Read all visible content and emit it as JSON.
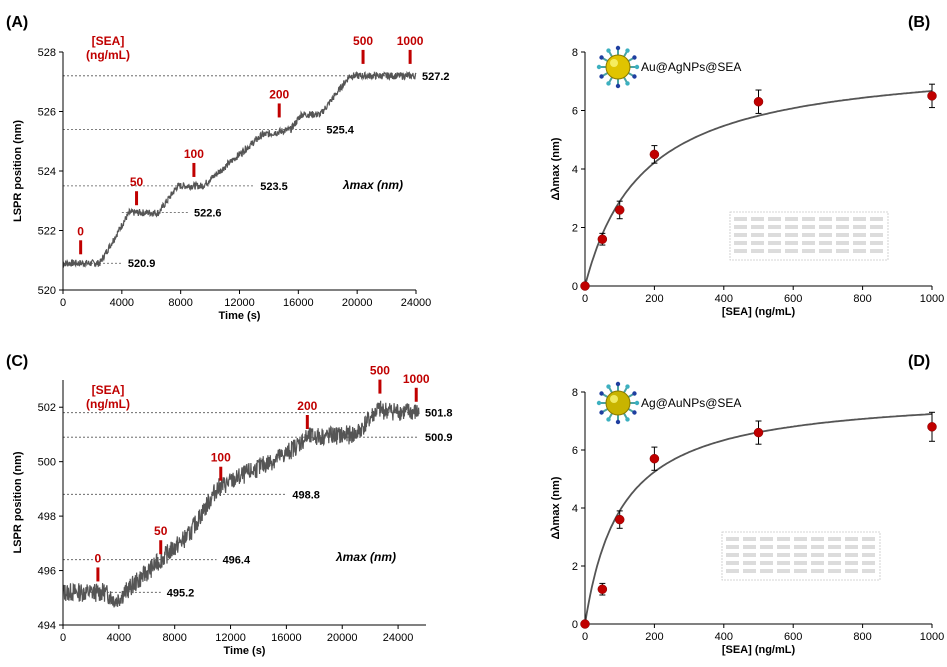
{
  "panel_labels": {
    "A": "(A)",
    "B": "(B)",
    "C": "(C)",
    "D": "(D)"
  },
  "colors": {
    "trace": "#555555",
    "marker": "#c00000",
    "point": "#c00000",
    "fit": "#555555"
  },
  "chart_data": [
    {
      "id": "A",
      "type": "line",
      "xlabel": "Time (s)",
      "ylabel": "LSPR position (nm)",
      "xlim": [
        0,
        24000
      ],
      "ylim": [
        520,
        528
      ],
      "xticks": [
        0,
        4000,
        8000,
        12000,
        16000,
        20000,
        24000
      ],
      "yticks": [
        520,
        522,
        524,
        526,
        528
      ],
      "sea_label_line1": "[SEA]",
      "sea_label_line2": "(ng/mL)",
      "lambda_label": "λmax (nm)",
      "trace_segments": [
        {
          "x0": 0,
          "x1": 2500,
          "y0": 520.9,
          "y1": 520.9
        },
        {
          "x0": 2500,
          "x1": 4500,
          "y0": 520.9,
          "y1": 522.6
        },
        {
          "x0": 4500,
          "x1": 6500,
          "y0": 522.6,
          "y1": 522.6
        },
        {
          "x0": 6500,
          "x1": 7800,
          "y0": 522.6,
          "y1": 523.5
        },
        {
          "x0": 7800,
          "x1": 9500,
          "y0": 523.5,
          "y1": 523.5
        },
        {
          "x0": 9500,
          "x1": 13500,
          "y0": 523.5,
          "y1": 525.2
        },
        {
          "x0": 13500,
          "x1": 15500,
          "y0": 525.2,
          "y1": 525.4
        },
        {
          "x0": 15500,
          "x1": 16200,
          "y0": 525.4,
          "y1": 525.9
        },
        {
          "x0": 16200,
          "x1": 17500,
          "y0": 525.9,
          "y1": 525.9
        },
        {
          "x0": 17500,
          "x1": 19500,
          "y0": 525.9,
          "y1": 527.2
        },
        {
          "x0": 19500,
          "x1": 24000,
          "y0": 527.2,
          "y1": 527.2
        }
      ],
      "noise": 0.12,
      "injections": [
        {
          "label": "0",
          "x": 1200,
          "y": 521.2
        },
        {
          "label": "50",
          "x": 5000,
          "y": 522.85
        },
        {
          "label": "100",
          "x": 8900,
          "y": 523.8
        },
        {
          "label": "200",
          "x": 14700,
          "y": 525.8
        },
        {
          "label": "500",
          "x": 20400,
          "y": 527.6
        },
        {
          "label": "1000",
          "x": 23600,
          "y": 527.6
        }
      ],
      "levels": [
        {
          "label": "520.9",
          "value": 520.9,
          "x_start": 0,
          "x_end": 4000
        },
        {
          "label": "522.6",
          "value": 522.6,
          "x_start": 4000,
          "x_end": 8500
        },
        {
          "label": "523.5",
          "value": 523.5,
          "x_start": 0,
          "x_end": 13000
        },
        {
          "label": "525.4",
          "value": 525.4,
          "x_start": 0,
          "x_end": 17500
        },
        {
          "label": "527.2",
          "value": 527.2,
          "x_start": 0,
          "x_end": 24000
        }
      ]
    },
    {
      "id": "B",
      "type": "scatter",
      "xlabel": "[SEA] (ng/mL)",
      "ylabel": "Δλmax (nm)",
      "xlim": [
        0,
        1000
      ],
      "ylim": [
        0,
        8
      ],
      "xticks": [
        0,
        200,
        400,
        600,
        800,
        1000
      ],
      "yticks": [
        0,
        2,
        4,
        6,
        8
      ],
      "np_label": "Au@AgNPs@SEA",
      "points": [
        {
          "x": 0,
          "y": 0,
          "err": 0
        },
        {
          "x": 50,
          "y": 1.6,
          "err": 0.2
        },
        {
          "x": 100,
          "y": 2.6,
          "err": 0.3
        },
        {
          "x": 200,
          "y": 4.5,
          "err": 0.3
        },
        {
          "x": 500,
          "y": 6.3,
          "err": 0.4
        },
        {
          "x": 1000,
          "y": 6.5,
          "err": 0.4
        }
      ],
      "fit": {
        "model": "langmuir",
        "bmax": 7.8,
        "kd": 170
      }
    },
    {
      "id": "C",
      "type": "line",
      "xlabel": "Time (s)",
      "ylabel": "LSPR position (nm)",
      "xlim": [
        0,
        26000
      ],
      "ylim": [
        494,
        503
      ],
      "xticks": [
        0,
        4000,
        8000,
        12000,
        16000,
        20000,
        24000
      ],
      "yticks": [
        494,
        496,
        498,
        500,
        502
      ],
      "sea_label_line1": "[SEA]",
      "sea_label_line2": "(ng/mL)",
      "lambda_label": "λmax (nm)",
      "trace_segments": [
        {
          "x0": 0,
          "x1": 3000,
          "y0": 495.2,
          "y1": 495.2
        },
        {
          "x0": 3000,
          "x1": 3800,
          "y0": 495.2,
          "y1": 494.9
        },
        {
          "x0": 3800,
          "x1": 7000,
          "y0": 494.9,
          "y1": 496.4
        },
        {
          "x0": 7000,
          "x1": 9000,
          "y0": 496.4,
          "y1": 497.3
        },
        {
          "x0": 9000,
          "x1": 11000,
          "y0": 497.3,
          "y1": 499.0
        },
        {
          "x0": 11000,
          "x1": 16000,
          "y0": 499.0,
          "y1": 500.3
        },
        {
          "x0": 16000,
          "x1": 17500,
          "y0": 500.3,
          "y1": 500.9
        },
        {
          "x0": 17500,
          "x1": 21000,
          "y0": 500.9,
          "y1": 501.0
        },
        {
          "x0": 21000,
          "x1": 22500,
          "y0": 501.0,
          "y1": 501.9
        },
        {
          "x0": 22500,
          "x1": 25500,
          "y0": 501.9,
          "y1": 501.8
        }
      ],
      "noise": 0.35,
      "injections": [
        {
          "label": "0",
          "x": 2500,
          "y": 495.6
        },
        {
          "label": "50",
          "x": 7000,
          "y": 496.6
        },
        {
          "label": "100",
          "x": 11300,
          "y": 499.3
        },
        {
          "label": "200",
          "x": 17500,
          "y": 501.2
        },
        {
          "label": "500",
          "x": 22700,
          "y": 502.5
        },
        {
          "label": "1000",
          "x": 25300,
          "y": 502.2
        }
      ],
      "levels": [
        {
          "label": "495.2",
          "value": 495.2,
          "x_start": 2000,
          "x_end": 7000
        },
        {
          "label": "496.4",
          "value": 496.4,
          "x_start": 0,
          "x_end": 11000
        },
        {
          "label": "498.8",
          "value": 498.8,
          "x_start": 0,
          "x_end": 16000
        },
        {
          "label": "500.9",
          "value": 500.9,
          "x_start": 0,
          "x_end": 25500
        },
        {
          "label": "501.8",
          "value": 501.8,
          "x_start": 0,
          "x_end": 25500
        }
      ]
    },
    {
      "id": "D",
      "type": "scatter",
      "xlabel": "[SEA] (ng/mL)",
      "ylabel": "Δλmax (nm)",
      "xlim": [
        0,
        1000
      ],
      "ylim": [
        0,
        8
      ],
      "xticks": [
        0,
        200,
        400,
        600,
        800,
        1000
      ],
      "yticks": [
        0,
        2,
        4,
        6,
        8
      ],
      "np_label": "Ag@AuNPs@SEA",
      "points": [
        {
          "x": 0,
          "y": 0,
          "err": 0
        },
        {
          "x": 50,
          "y": 1.2,
          "err": 0.2
        },
        {
          "x": 100,
          "y": 3.6,
          "err": 0.3
        },
        {
          "x": 200,
          "y": 5.7,
          "err": 0.4
        },
        {
          "x": 500,
          "y": 6.6,
          "err": 0.4
        },
        {
          "x": 1000,
          "y": 6.8,
          "err": 0.5
        }
      ],
      "fit": {
        "model": "langmuir",
        "bmax": 8.0,
        "kd": 105
      }
    }
  ]
}
